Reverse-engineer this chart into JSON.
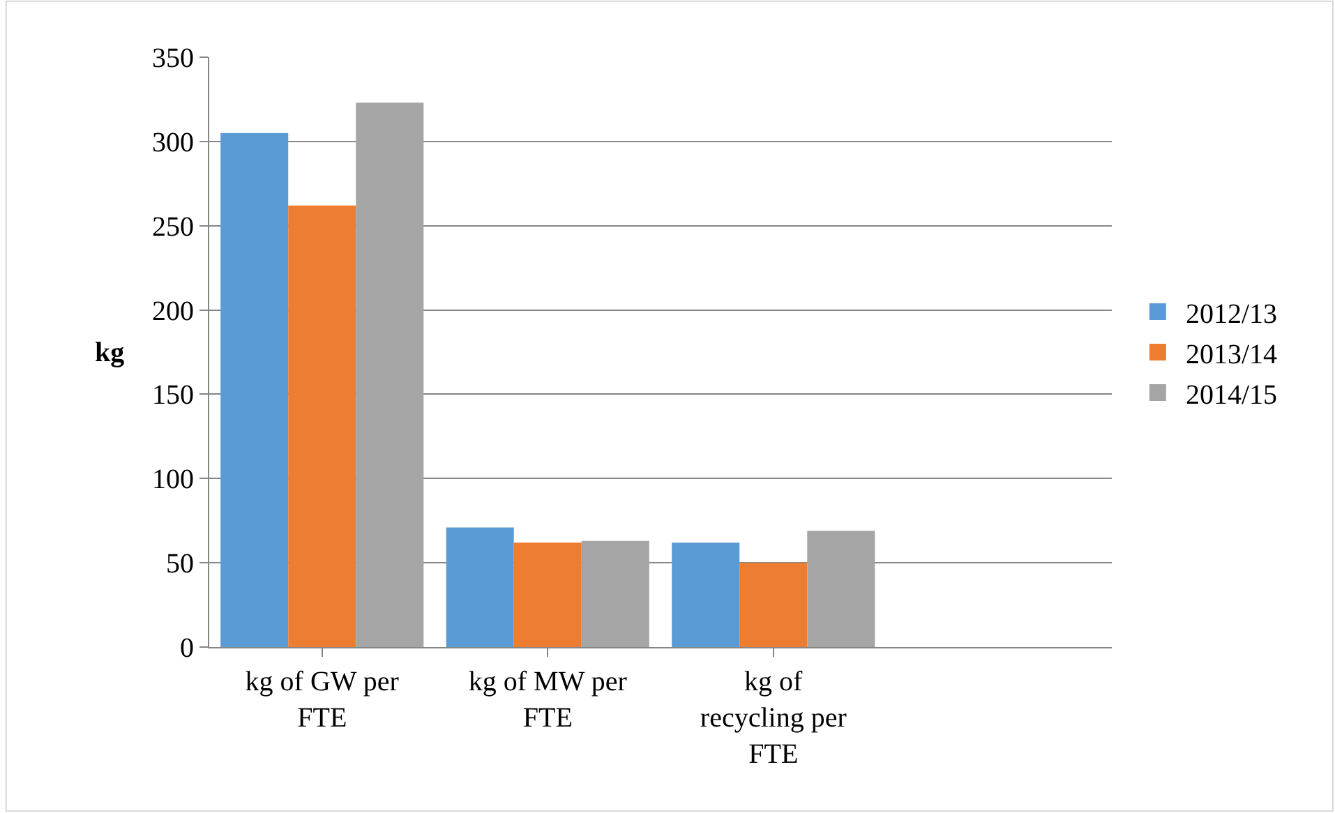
{
  "chart_data": {
    "type": "bar",
    "ylabel": "kg",
    "categories": [
      "kg of GW per FTE",
      "kg of MW per FTE",
      "kg of recycling per FTE",
      null
    ],
    "series": [
      {
        "name": "2012/13",
        "color": "#5b9bd5",
        "values": [
          305,
          71,
          62,
          null
        ]
      },
      {
        "name": "2013/14",
        "color": "#ed7d31",
        "values": [
          262,
          62,
          50,
          null
        ]
      },
      {
        "name": "2014/15",
        "color": "#a5a5a5",
        "values": [
          323,
          63,
          69,
          null
        ]
      }
    ],
    "ylim": [
      0,
      350
    ],
    "yticks": [
      0,
      50,
      100,
      150,
      200,
      250,
      300,
      350
    ],
    "grid": "y",
    "legend": "right"
  }
}
